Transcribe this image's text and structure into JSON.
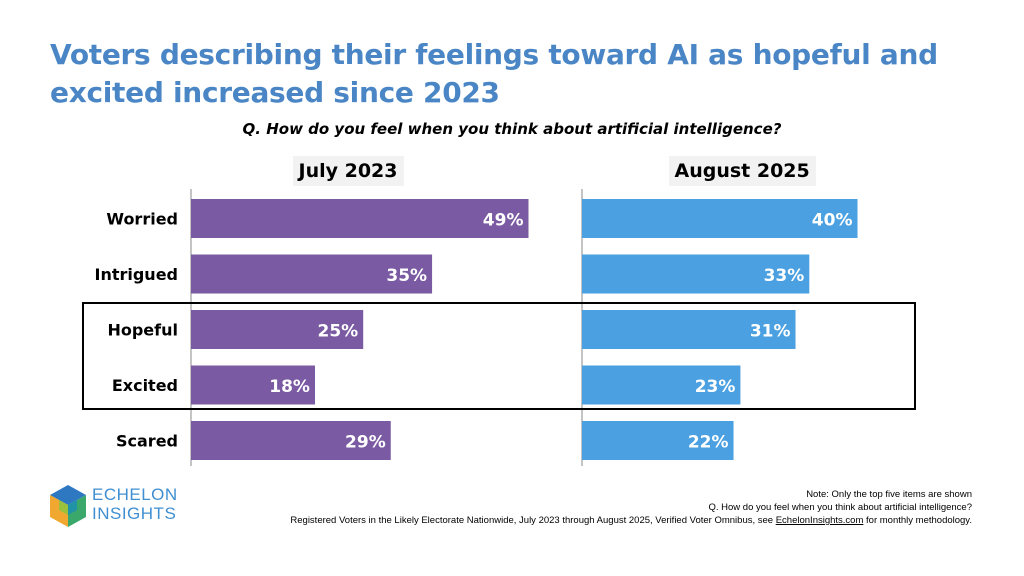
{
  "title": "Voters describing their feelings toward AI as hopeful and excited increased since 2023",
  "question": "Q. How do you feel when you think about artificial intelligence?",
  "colors": {
    "title": "#4a86c5",
    "series1": "#7a5aa2",
    "series2": "#4aa0e0"
  },
  "chart_data": {
    "type": "bar",
    "orientation": "horizontal",
    "categories": [
      "Worried",
      "Intrigued",
      "Hopeful",
      "Excited",
      "Scared"
    ],
    "series": [
      {
        "name": "July 2023",
        "values": [
          49,
          35,
          25,
          18,
          29
        ],
        "labels": [
          "49%",
          "35%",
          "25%",
          "18%",
          "29%"
        ]
      },
      {
        "name": "August 2025",
        "values": [
          40,
          33,
          31,
          23,
          22
        ],
        "labels": [
          "40%",
          "33%",
          "31%",
          "23%",
          "22%"
        ]
      }
    ],
    "xlim": [
      0,
      50
    ],
    "grid": false,
    "highlighted_categories": [
      "Hopeful",
      "Excited"
    ]
  },
  "footer": {
    "line1": "Note: Only the top five items are shown",
    "line2": "Q. How do you feel when you think about artificial intelligence?",
    "line3_pre": "Registered Voters in the Likely Electorate Nationwide, July 2023 through August 2025, Verified Voter Omnibus, see ",
    "line3_link": "EchelonInsights.com",
    "line3_post": " for monthly methodology."
  },
  "logo": {
    "line1": "ECHELON",
    "line2": "INSIGHTS"
  }
}
